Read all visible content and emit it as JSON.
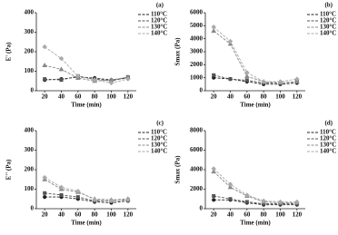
{
  "chart_data": [
    {
      "type": "line",
      "panel": "(a)",
      "y_label": "E' (Pa)",
      "x_label": "Time (min)",
      "x": [
        20,
        40,
        60,
        80,
        100,
        120
      ],
      "xlim": [
        10,
        130
      ],
      "xticks": [
        20,
        40,
        60,
        80,
        100,
        120
      ],
      "ylim": [
        0,
        400
      ],
      "yticks": [
        0,
        100,
        200,
        300,
        400
      ],
      "legend": "upper right",
      "series": [
        {
          "name": "110°C",
          "color": "#222222",
          "values": [
            55,
            60,
            70,
            65,
            55,
            65
          ]
        },
        {
          "name": "120°C",
          "color": "#555555",
          "values": [
            60,
            55,
            75,
            60,
            50,
            70
          ]
        },
        {
          "name": "130°C",
          "color": "#888888",
          "values": [
            130,
            110,
            65,
            50,
            55,
            70
          ]
        },
        {
          "name": "140°C",
          "color": "#aaaaaa",
          "values": [
            225,
            165,
            75,
            55,
            40,
            60
          ]
        }
      ]
    },
    {
      "type": "line",
      "panel": "(b)",
      "y_label": "Smax (Pa)",
      "x_label": "Time (min)",
      "x": [
        20,
        40,
        60,
        80,
        100,
        120
      ],
      "xlim": [
        10,
        130
      ],
      "xticks": [
        20,
        40,
        60,
        80,
        100,
        120
      ],
      "ylim": [
        0,
        6000
      ],
      "yticks": [
        0,
        1000,
        2000,
        3000,
        4000,
        5000,
        6000
      ],
      "legend": "upper right",
      "series": [
        {
          "name": "110°C",
          "color": "#222222",
          "values": [
            1000,
            900,
            700,
            500,
            500,
            600
          ]
        },
        {
          "name": "120°C",
          "color": "#555555",
          "values": [
            1200,
            900,
            800,
            600,
            600,
            700
          ]
        },
        {
          "name": "130°C",
          "color": "#888888",
          "values": [
            4600,
            3600,
            1100,
            700,
            600,
            700
          ]
        },
        {
          "name": "140°C",
          "color": "#aaaaaa",
          "values": [
            4900,
            3800,
            1400,
            700,
            700,
            900
          ]
        }
      ]
    },
    {
      "type": "line",
      "panel": "(c)",
      "y_label": "E'' (Pa)",
      "x_label": "Time (min)",
      "x": [
        20,
        40,
        60,
        80,
        100,
        120
      ],
      "xlim": [
        10,
        130
      ],
      "xticks": [
        20,
        40,
        60,
        80,
        100,
        120
      ],
      "ylim": [
        0,
        400
      ],
      "yticks": [
        0,
        100,
        200,
        300,
        400
      ],
      "legend": "upper right",
      "series": [
        {
          "name": "110°C",
          "color": "#222222",
          "values": [
            60,
            60,
            50,
            35,
            30,
            40
          ]
        },
        {
          "name": "120°C",
          "color": "#555555",
          "values": [
            80,
            70,
            60,
            40,
            40,
            45
          ]
        },
        {
          "name": "130°C",
          "color": "#888888",
          "values": [
            150,
            100,
            85,
            50,
            45,
            50
          ]
        },
        {
          "name": "140°C",
          "color": "#aaaaaa",
          "values": [
            160,
            110,
            90,
            45,
            40,
            45
          ]
        }
      ]
    },
    {
      "type": "line",
      "panel": "(d)",
      "y_label": "Smax (Pa)",
      "x_label": "Time (min)",
      "x": [
        20,
        40,
        60,
        80,
        100,
        120
      ],
      "xlim": [
        10,
        130
      ],
      "xticks": [
        20,
        40,
        60,
        80,
        100,
        120
      ],
      "ylim": [
        0,
        8000
      ],
      "yticks": [
        0,
        2000,
        4000,
        6000,
        8000
      ],
      "legend": "upper right",
      "series": [
        {
          "name": "110°C",
          "color": "#222222",
          "values": [
            900,
            900,
            600,
            400,
            400,
            400
          ]
        },
        {
          "name": "120°C",
          "color": "#555555",
          "values": [
            1300,
            1000,
            700,
            500,
            500,
            500
          ]
        },
        {
          "name": "130°C",
          "color": "#888888",
          "values": [
            3800,
            2200,
            1300,
            700,
            600,
            600
          ]
        },
        {
          "name": "140°C",
          "color": "#aaaaaa",
          "values": [
            4100,
            2500,
            1400,
            800,
            700,
            700
          ]
        }
      ]
    }
  ]
}
